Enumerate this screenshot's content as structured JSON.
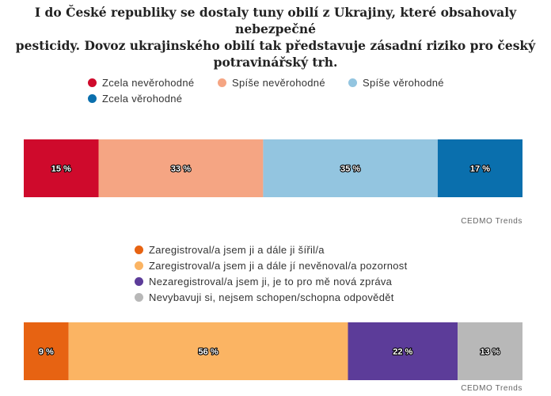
{
  "title_lines": [
    "I do České republiky se dostaly tuny obilí z Ukrajiny, které obsahovaly nebezpečné",
    "pesticidy. Dovoz ukrajinského obilí tak představuje zásadní riziko pro český",
    "potravinářský trh."
  ],
  "chart_data": [
    {
      "type": "bar",
      "orientation": "horizontal-stacked",
      "legend_placement": "top",
      "series": [
        {
          "name": "Zcela nevěrohodné",
          "values": [
            15
          ],
          "color": "#cf0a2c",
          "label": "15 %"
        },
        {
          "name": "Spíše nevěrohodné",
          "values": [
            33
          ],
          "color": "#f5a583",
          "label": "33 %"
        },
        {
          "name": "Spíše věrohodné",
          "values": [
            35
          ],
          "color": "#93c5e0",
          "label": "35 %"
        },
        {
          "name": "Zcela věrohodné",
          "values": [
            17
          ],
          "color": "#0a6fad",
          "label": "17 %"
        }
      ],
      "xlim": [
        0,
        100
      ],
      "grid": false,
      "credit": "CEDMO Trends"
    },
    {
      "type": "bar",
      "orientation": "horizontal-stacked",
      "legend_placement": "top",
      "series": [
        {
          "name": "Zaregistroval/a jsem ji a dále ji šířil/a",
          "values": [
            9
          ],
          "color": "#e76312",
          "label": "9 %"
        },
        {
          "name": "Zaregistroval/a jsem ji a dále jí nevěnoval/a pozornost",
          "values": [
            56
          ],
          "color": "#fbb463",
          "label": "56 %"
        },
        {
          "name": "Nezaregistroval/a jsem ji, je to pro mě nová zpráva",
          "values": [
            22
          ],
          "color": "#5c3c99",
          "label": "22 %"
        },
        {
          "name": "Nevybavuji si, nejsem schopen/schopna odpovědět",
          "values": [
            13
          ],
          "color": "#b8b8b8",
          "label": "13 %"
        }
      ],
      "xlim": [
        0,
        100
      ],
      "grid": false,
      "credit": "CEDMO Trends"
    }
  ]
}
